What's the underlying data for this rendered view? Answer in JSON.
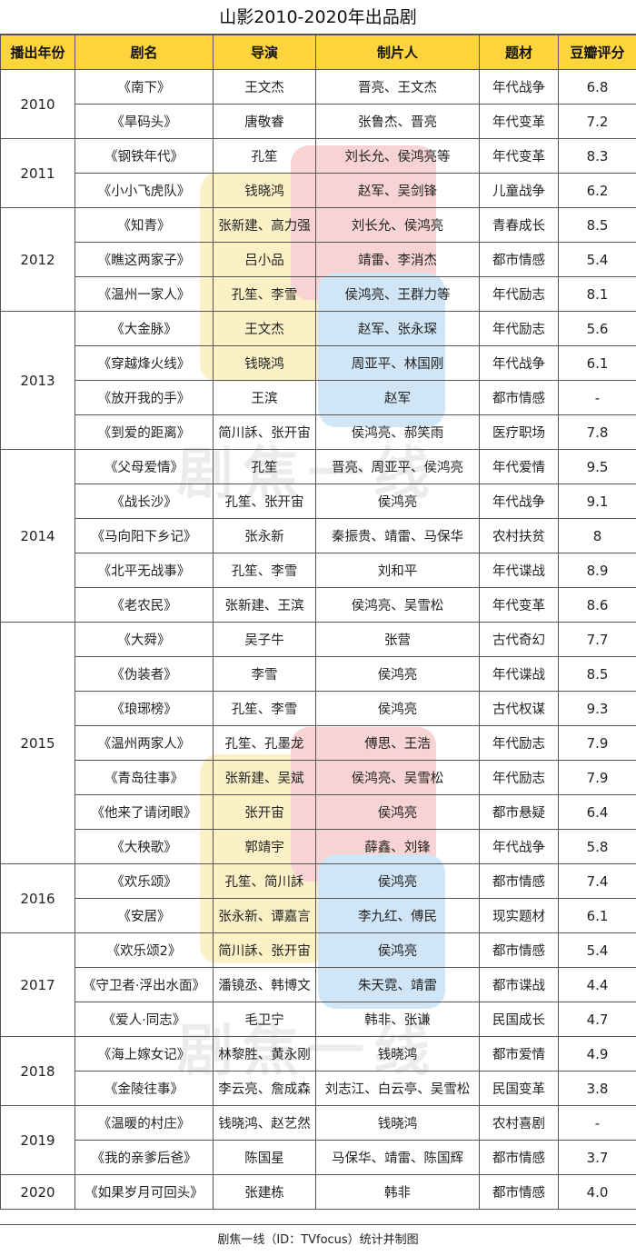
{
  "title": "山影2010-2020年出品剧",
  "headers": [
    "播出年份",
    "剧名",
    "导演",
    "制片人",
    "题材",
    "豆瓣评分"
  ],
  "footer": "剧焦一线（ID：TVfocus）统计并制图",
  "watermark_text": "剧焦一线",
  "colors": {
    "header_bg": "#fdd43c",
    "border": "#555555"
  },
  "years": [
    {
      "year": "2010",
      "rows": [
        {
          "name": "《南下》",
          "director": "王文杰",
          "producer": "晋亮、王文杰",
          "genre": "年代战争",
          "score": "6.8"
        },
        {
          "name": "《旱码头》",
          "director": "唐敬睿",
          "producer": "张鲁杰、晋亮",
          "genre": "年代变革",
          "score": "7.2"
        }
      ]
    },
    {
      "year": "2011",
      "rows": [
        {
          "name": "《钢铁年代》",
          "director": "孔笙",
          "producer": "刘长允、侯鸿亮等",
          "genre": "年代变革",
          "score": "8.3"
        },
        {
          "name": "《小小飞虎队》",
          "director": "钱晓鸿",
          "producer": "赵军、吴剑锋",
          "genre": "儿童战争",
          "score": "6.2"
        }
      ]
    },
    {
      "year": "2012",
      "rows": [
        {
          "name": "《知青》",
          "director": "张新建、高力强",
          "producer": "刘长允、侯鸿亮",
          "genre": "青春成长",
          "score": "8.5"
        },
        {
          "name": "《瞧这两家子》",
          "director": "吕小品",
          "producer": "靖雷、李消杰",
          "genre": "都市情感",
          "score": "5.4"
        },
        {
          "name": "《温州一家人》",
          "director": "孔笙、李雪",
          "producer": "侯鸿亮、王群力等",
          "genre": "年代励志",
          "score": "8.1"
        }
      ]
    },
    {
      "year": "2013",
      "rows": [
        {
          "name": "《大金脉》",
          "director": "王文杰",
          "producer": "赵军、张永琛",
          "genre": "年代励志",
          "score": "5.6"
        },
        {
          "name": "《穿越烽火线》",
          "director": "钱晓鸿",
          "producer": "周亚平、林国刚",
          "genre": "年代战争",
          "score": "6.1"
        },
        {
          "name": "《放开我的手》",
          "director": "王滨",
          "producer": "赵军",
          "genre": "都市情感",
          "score": "-"
        },
        {
          "name": "《到爱的距离》",
          "director": "简川訸、张开宙",
          "producer": "侯鸿亮、郝笑雨",
          "genre": "医疗职场",
          "score": "7.8"
        }
      ]
    },
    {
      "year": "2014",
      "rows": [
        {
          "name": "《父母爱情》",
          "director": "孔笙",
          "producer": "晋亮、周亚平、侯鸿亮",
          "genre": "年代爱情",
          "score": "9.5"
        },
        {
          "name": "《战长沙》",
          "director": "孔笙、张开宙",
          "producer": "侯鸿亮",
          "genre": "年代战争",
          "score": "9.1"
        },
        {
          "name": "《马向阳下乡记》",
          "director": "张永新",
          "producer": "秦振贵、靖雷、马保华",
          "genre": "农村扶贫",
          "score": "8"
        },
        {
          "name": "《北平无战事》",
          "director": "孔笙、李雪",
          "producer": "刘和平",
          "genre": "年代谍战",
          "score": "8.9"
        },
        {
          "name": "《老农民》",
          "director": "张新建、王滨",
          "producer": "侯鸿亮、吴雪松",
          "genre": "年代变革",
          "score": "8.6"
        }
      ]
    },
    {
      "year": "2015",
      "rows": [
        {
          "name": "《大舜》",
          "director": "吴子牛",
          "producer": "张营",
          "genre": "古代奇幻",
          "score": "7.7"
        },
        {
          "name": "《伪装者》",
          "director": "李雪",
          "producer": "侯鸿亮",
          "genre": "年代谍战",
          "score": "8.5"
        },
        {
          "name": "《琅琊榜》",
          "director": "孔笙、李雪",
          "producer": "侯鸿亮",
          "genre": "古代权谋",
          "score": "9.3"
        },
        {
          "name": "《温州两家人》",
          "director": "孔笙、孔墨龙",
          "producer": "傅思、王浩",
          "genre": "年代励志",
          "score": "7.9"
        },
        {
          "name": "《青岛往事》",
          "director": "张新建、吴斌",
          "producer": "侯鸿亮、吴雪松",
          "genre": "年代励志",
          "score": "7.9"
        },
        {
          "name": "《他来了请闭眼》",
          "director": "张开宙",
          "producer": "侯鸿亮",
          "genre": "都市悬疑",
          "score": "6.4"
        },
        {
          "name": "《大秧歌》",
          "director": "郭靖宇",
          "producer": "薛鑫、刘锋",
          "genre": "年代战争",
          "score": "5.8"
        }
      ]
    },
    {
      "year": "2016",
      "rows": [
        {
          "name": "《欢乐颂》",
          "director": "孔笙、简川訸",
          "producer": "侯鸿亮",
          "genre": "都市情感",
          "score": "7.4"
        },
        {
          "name": "《安居》",
          "director": "张永新、谭嘉言",
          "producer": "李九红、傅民",
          "genre": "现实题材",
          "score": "6.1"
        }
      ]
    },
    {
      "year": "2017",
      "rows": [
        {
          "name": "《欢乐颂2》",
          "director": "简川訸、张开宙",
          "producer": "侯鸿亮",
          "genre": "都市情感",
          "score": "5.4"
        },
        {
          "name": "《守卫者·浮出水面》",
          "director": "潘镜丞、韩博文",
          "producer": "朱天霓、靖雷",
          "genre": "都市谍战",
          "score": "4.4"
        },
        {
          "name": "《爱人·同志》",
          "director": "毛卫宁",
          "producer": "韩非、张谦",
          "genre": "民国成长",
          "score": "4.7"
        }
      ]
    },
    {
      "year": "2018",
      "rows": [
        {
          "name": "《海上嫁女记》",
          "director": "林黎胜、黄永刚",
          "producer": "钱晓鸿",
          "genre": "都市爱情",
          "score": "4.9"
        },
        {
          "name": "《金陵往事》",
          "director": "李云亮、詹成森",
          "producer": "刘志江、白云亭、吴雪松",
          "genre": "民国变革",
          "score": "3.8"
        }
      ]
    },
    {
      "year": "2019",
      "rows": [
        {
          "name": "《温暖的村庄》",
          "director": "钱晓鸿、赵艺然",
          "producer": "钱晓鸿",
          "genre": "农村喜剧",
          "score": "-"
        },
        {
          "name": "《我的亲爹后爸》",
          "director": "陈国星",
          "producer": "马保华、靖雷、陈国辉",
          "genre": "都市情感",
          "score": "3.7"
        }
      ]
    },
    {
      "year": "2020",
      "rows": [
        {
          "name": "《如果岁月可回头》",
          "director": "张建栋",
          "producer": "韩非",
          "genre": "都市情感",
          "score": "4.0"
        }
      ]
    }
  ]
}
